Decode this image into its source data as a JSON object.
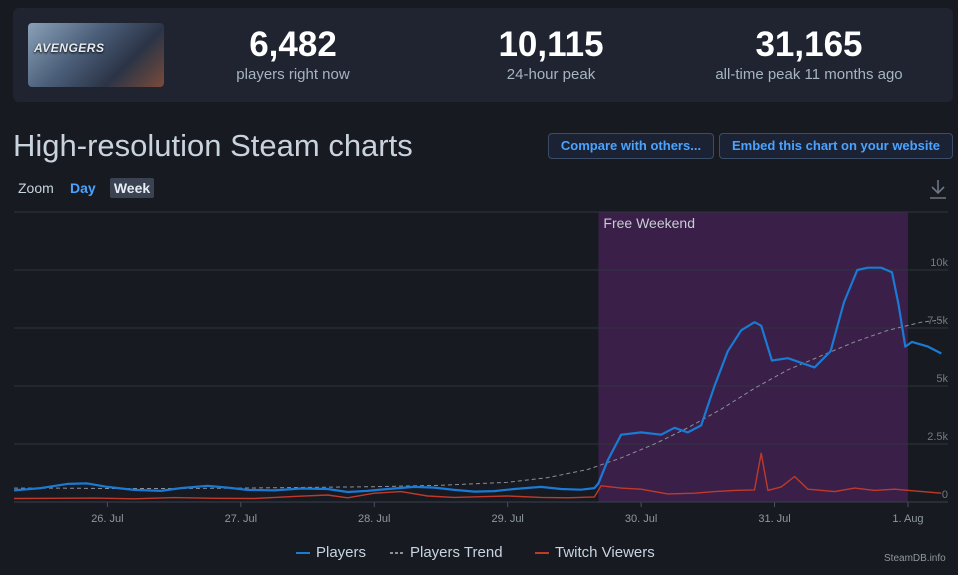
{
  "header": {
    "game_logo_text": "AVENGERS",
    "stats": [
      {
        "value": "6,482",
        "label": "players right now"
      },
      {
        "value": "10,115",
        "label": "24-hour peak"
      },
      {
        "value": "31,165",
        "label": "all-time peak 11 months ago"
      }
    ]
  },
  "page_title": "High-resolution Steam charts",
  "buttons": {
    "compare": "Compare with others...",
    "embed": "Embed this chart on your website"
  },
  "zoom": {
    "label": "Zoom",
    "day": "Day",
    "week": "Week",
    "selected": "Week"
  },
  "credit": "SteamDB.info",
  "colors": {
    "players": "#1a7ad4",
    "trend": "#8a8f98",
    "twitch": "#c0392b",
    "band": "#3a1f48",
    "accent": "#4aa3ff"
  },
  "chart_data": {
    "type": "line",
    "annotations": [
      {
        "label": "Free Weekend",
        "start": 29.68,
        "end": 32.0
      }
    ],
    "x_ticks": [
      {
        "x": 26,
        "label": "26. Jul"
      },
      {
        "x": 27,
        "label": "27. Jul"
      },
      {
        "x": 28,
        "label": "28. Jul"
      },
      {
        "x": 29,
        "label": "29. Jul"
      },
      {
        "x": 30,
        "label": "30. Jul"
      },
      {
        "x": 31,
        "label": "31. Jul"
      },
      {
        "x": 32,
        "label": "1. Aug"
      }
    ],
    "y_ticks": [
      {
        "v": 0,
        "label": "0"
      },
      {
        "v": 2500,
        "label": "2.5k"
      },
      {
        "v": 5000,
        "label": "5k"
      },
      {
        "v": 7500,
        "label": "7.5k"
      },
      {
        "v": 10000,
        "label": "10k"
      }
    ],
    "xlim": [
      25.3,
      32.3
    ],
    "ylim": [
      0,
      12500
    ],
    "legend_placement": "bottom-center",
    "series": [
      {
        "name": "Players",
        "points": [
          [
            25.3,
            500
          ],
          [
            25.5,
            600
          ],
          [
            25.7,
            780
          ],
          [
            25.85,
            800
          ],
          [
            26.0,
            650
          ],
          [
            26.2,
            520
          ],
          [
            26.4,
            480
          ],
          [
            26.55,
            600
          ],
          [
            26.75,
            700
          ],
          [
            26.9,
            620
          ],
          [
            27.05,
            520
          ],
          [
            27.25,
            500
          ],
          [
            27.45,
            580
          ],
          [
            27.65,
            560
          ],
          [
            27.8,
            430
          ],
          [
            27.95,
            480
          ],
          [
            28.1,
            560
          ],
          [
            28.3,
            650
          ],
          [
            28.45,
            620
          ],
          [
            28.6,
            520
          ],
          [
            28.75,
            450
          ],
          [
            28.9,
            470
          ],
          [
            29.05,
            560
          ],
          [
            29.25,
            650
          ],
          [
            29.4,
            560
          ],
          [
            29.55,
            530
          ],
          [
            29.65,
            600
          ],
          [
            29.68,
            800
          ],
          [
            29.75,
            1800
          ],
          [
            29.85,
            2900
          ],
          [
            30.0,
            3000
          ],
          [
            30.15,
            2900
          ],
          [
            30.25,
            3200
          ],
          [
            30.35,
            3000
          ],
          [
            30.45,
            3300
          ],
          [
            30.55,
            5000
          ],
          [
            30.65,
            6500
          ],
          [
            30.75,
            7400
          ],
          [
            30.85,
            7750
          ],
          [
            30.9,
            7600
          ],
          [
            30.98,
            6100
          ],
          [
            31.1,
            6200
          ],
          [
            31.2,
            6000
          ],
          [
            31.3,
            5800
          ],
          [
            31.42,
            6500
          ],
          [
            31.52,
            8600
          ],
          [
            31.62,
            10000
          ],
          [
            31.7,
            10100
          ],
          [
            31.8,
            10100
          ],
          [
            31.88,
            9900
          ],
          [
            31.93,
            8500
          ],
          [
            31.98,
            6700
          ],
          [
            32.03,
            6900
          ],
          [
            32.15,
            6700
          ],
          [
            32.25,
            6400
          ]
        ]
      },
      {
        "name": "Players Trend",
        "points": [
          [
            25.3,
            600
          ],
          [
            25.6,
            600
          ],
          [
            26,
            580
          ],
          [
            26.5,
            580
          ],
          [
            27,
            600
          ],
          [
            27.5,
            630
          ],
          [
            28,
            660
          ],
          [
            28.5,
            720
          ],
          [
            29,
            850
          ],
          [
            29.3,
            1050
          ],
          [
            29.6,
            1400
          ],
          [
            29.85,
            1900
          ],
          [
            30.1,
            2500
          ],
          [
            30.35,
            3200
          ],
          [
            30.6,
            4000
          ],
          [
            30.85,
            4900
          ],
          [
            31.1,
            5700
          ],
          [
            31.35,
            6300
          ],
          [
            31.6,
            6900
          ],
          [
            31.85,
            7400
          ],
          [
            32.1,
            7750
          ],
          [
            32.25,
            7850
          ]
        ]
      },
      {
        "name": "Twitch Viewers",
        "points": [
          [
            25.3,
            150
          ],
          [
            25.6,
            160
          ],
          [
            25.9,
            170
          ],
          [
            26.2,
            140
          ],
          [
            26.5,
            190
          ],
          [
            26.8,
            160
          ],
          [
            27.1,
            150
          ],
          [
            27.4,
            240
          ],
          [
            27.65,
            300
          ],
          [
            27.8,
            180
          ],
          [
            28.0,
            380
          ],
          [
            28.2,
            450
          ],
          [
            28.4,
            260
          ],
          [
            28.6,
            200
          ],
          [
            28.8,
            230
          ],
          [
            29.0,
            260
          ],
          [
            29.25,
            200
          ],
          [
            29.45,
            180
          ],
          [
            29.65,
            220
          ],
          [
            29.7,
            700
          ],
          [
            29.85,
            600
          ],
          [
            30.0,
            550
          ],
          [
            30.2,
            350
          ],
          [
            30.4,
            380
          ],
          [
            30.55,
            450
          ],
          [
            30.7,
            500
          ],
          [
            30.85,
            520
          ],
          [
            30.9,
            2100
          ],
          [
            30.95,
            500
          ],
          [
            31.05,
            650
          ],
          [
            31.15,
            1100
          ],
          [
            31.25,
            550
          ],
          [
            31.45,
            450
          ],
          [
            31.6,
            600
          ],
          [
            31.75,
            500
          ],
          [
            31.9,
            550
          ],
          [
            32.05,
            480
          ],
          [
            32.25,
            380
          ]
        ]
      }
    ]
  }
}
